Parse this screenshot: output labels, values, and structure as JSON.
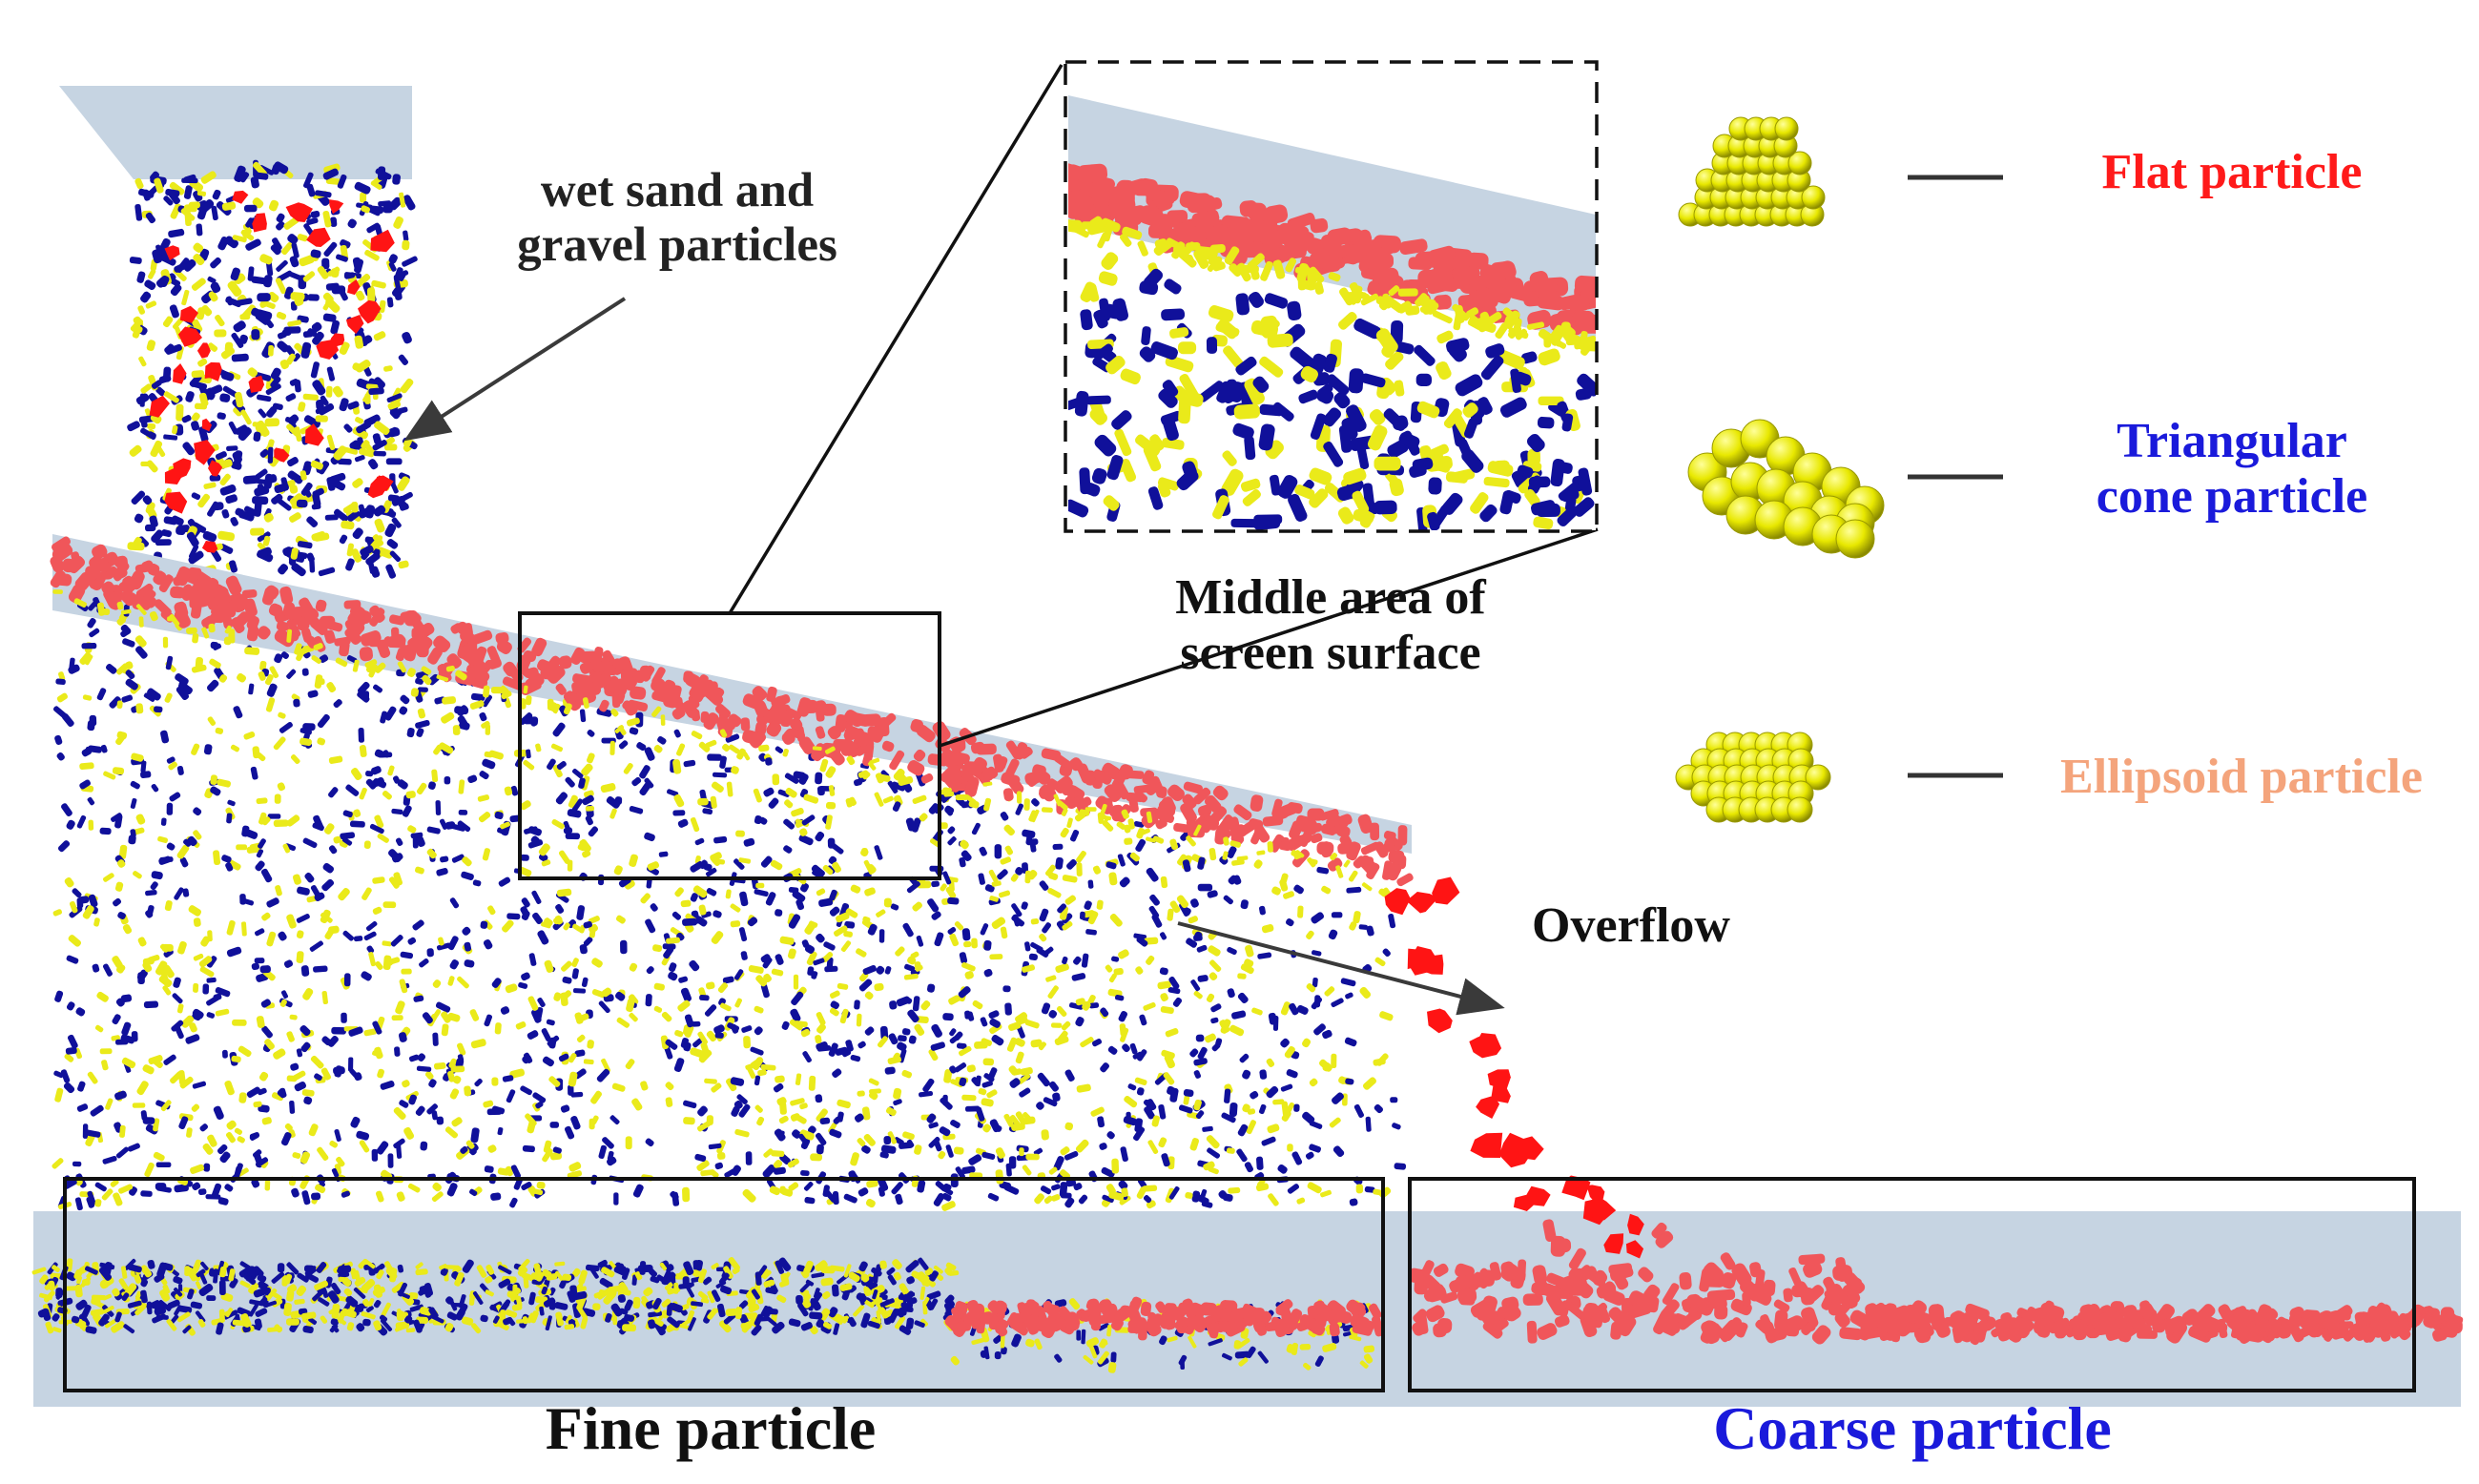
{
  "labels": {
    "wet_sand_line1": "wet sand and",
    "wet_sand_line2": "gravel particles",
    "middle_area_line1": "Middle area of",
    "middle_area_line2": "screen surface",
    "overflow": "Overflow",
    "fine_particle": "Fine particle",
    "coarse_particle": "Coarse particle"
  },
  "legend": [
    {
      "label": "Flat particle",
      "color": "#ff1a1a",
      "icon": "flat-particle-icon"
    },
    {
      "label": "Triangular cone particle",
      "line1": "Triangular",
      "line2": "cone particle",
      "color": "#1a1adb",
      "icon": "triangular-cone-particle-icon"
    },
    {
      "label": "Ellipsoid particle",
      "color": "#f4a47c",
      "icon": "ellipsoid-particle-icon"
    }
  ],
  "colors": {
    "screen_panel": "#c6d4e2",
    "coarse_red": "#ff1414",
    "bed_red": "#f0565a",
    "fine_blue": "#10109a",
    "fine_yellow": "#eaea1a",
    "sphere_yellow": "#e6e600",
    "coarse_label": "#1a1adb",
    "text_dark": "#111111"
  }
}
